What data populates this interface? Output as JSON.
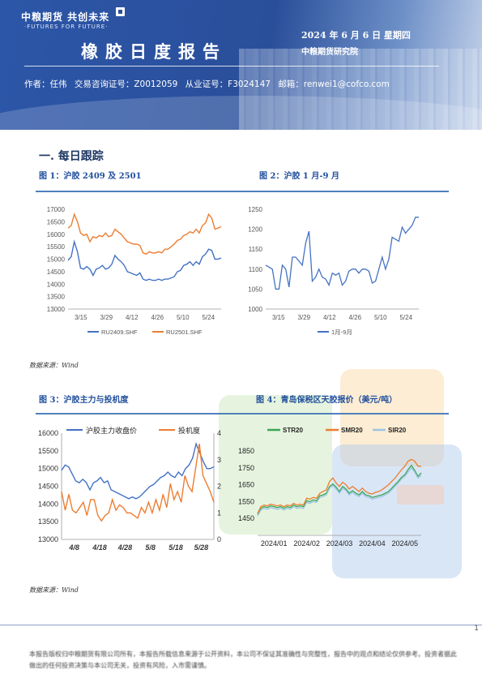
{
  "header": {
    "logo_cn": "中粮期货 共创未来",
    "logo_en": "·FUTURES FOR FUTURE·",
    "title": "橡胶日度报告",
    "date": "2024 年 6 月 6 日 星期四",
    "institute": "中粮期货研究院",
    "author_label": "作者：任伟",
    "license1": "交易咨询证号：Z0012059",
    "license2": "从业证号：F3024147",
    "email": "邮箱：renwei1@cofco.com"
  },
  "section_title": "一. 每日跟踪",
  "figures": {
    "fig1_title": "图 1：沪胶 2409 及 2501",
    "fig2_title": "图 2：沪胶 1 月-9 月",
    "fig3_title": "图 3：沪胶主力与投机度",
    "fig4_title": "图 4：青岛保税区天胶报价（美元/吨）",
    "source_top": "数据来源：Wind",
    "source_bottom": "数据来源：Wind"
  },
  "colors": {
    "blue": "#4472c4",
    "orange": "#ed7d31",
    "green": "#3aa655",
    "lightblue": "#9dc3e6"
  },
  "chart_data": [
    {
      "type": "line",
      "ylim": [
        13000,
        17000
      ],
      "x_ticks": [
        "3/15",
        "3/29",
        "4/12",
        "4/26",
        "5/10",
        "5/24"
      ],
      "series": [
        {
          "name": "RU2409.SHF",
          "values": [
            14950,
            15100,
            15700,
            15300,
            14650,
            14600,
            14700,
            14600,
            14350,
            14600,
            14650,
            14750,
            14600,
            14650,
            14800,
            15150,
            15000,
            14900,
            14750,
            14500,
            14450,
            14400,
            14350,
            14450,
            14200,
            14150,
            14200,
            14150,
            14150,
            14200,
            14150,
            14200,
            14200,
            14250,
            14300,
            14500,
            14550,
            14750,
            14800,
            14900,
            14750,
            14900,
            14800,
            15100,
            15200,
            15400,
            15350,
            15000,
            15000,
            15050
          ]
        },
        {
          "name": "RU2501.SHF",
          "values": [
            16250,
            16350,
            16800,
            16500,
            16050,
            15950,
            16000,
            15700,
            15900,
            15850,
            15950,
            15900,
            16050,
            15900,
            15950,
            16200,
            16100,
            16000,
            15850,
            15700,
            15650,
            15600,
            15600,
            15550,
            15250,
            15200,
            15300,
            15250,
            15250,
            15300,
            15250,
            15400,
            15400,
            15500,
            15600,
            15750,
            15800,
            15950,
            16000,
            16100,
            16050,
            16200,
            16050,
            16350,
            16450,
            16800,
            16650,
            16200,
            16250,
            16300
          ]
        }
      ],
      "yticks": [
        "13000",
        "13500",
        "14000",
        "14500",
        "15000",
        "15500",
        "16000",
        "16500",
        "17000"
      ]
    },
    {
      "type": "line",
      "ylim": [
        1000,
        1250
      ],
      "x_ticks": [
        "3/15",
        "3/29",
        "4/12",
        "4/26",
        "5/10",
        "5/24"
      ],
      "series": [
        {
          "name": "1月-9月",
          "values": [
            1110,
            1105,
            1100,
            1050,
            1050,
            1110,
            1100,
            1055,
            1130,
            1130,
            1120,
            1110,
            1165,
            1195,
            1070,
            1080,
            1100,
            1080,
            1075,
            1060,
            1090,
            1085,
            1090,
            1060,
            1070,
            1095,
            1100,
            1100,
            1090,
            1100,
            1100,
            1095,
            1065,
            1070,
            1100,
            1130,
            1100,
            1125,
            1180,
            1175,
            1170,
            1205,
            1190,
            1200,
            1210,
            1230,
            1230
          ]
        }
      ],
      "yticks": [
        "1000",
        "1050",
        "1100",
        "1150",
        "1200",
        "1250"
      ]
    },
    {
      "type": "line",
      "ylim": [
        13000,
        16000
      ],
      "y2lim": [
        0,
        4
      ],
      "x_ticks": [
        "4/8",
        "4/18",
        "4/28",
        "5/8",
        "5/18",
        "5/28"
      ],
      "series": [
        {
          "name": "沪胶主力收盘价",
          "axis": "left",
          "values": [
            14950,
            15100,
            15050,
            14850,
            14650,
            14600,
            14700,
            14600,
            14400,
            14600,
            14650,
            14750,
            14600,
            14650,
            14400,
            14350,
            14300,
            14250,
            14200,
            14150,
            14200,
            14150,
            14200,
            14300,
            14400,
            14500,
            14550,
            14650,
            14750,
            14800,
            14900,
            14800,
            14750,
            14900,
            14800,
            15000,
            15100,
            15300,
            15700,
            15450,
            15200,
            15000,
            15000,
            15050
          ]
        },
        {
          "name": "投机度",
          "axis": "right",
          "values": [
            1.8,
            1.1,
            1.7,
            1.1,
            1.0,
            1.2,
            1.4,
            0.9,
            1.5,
            1.5,
            0.9,
            0.7,
            0.9,
            1.0,
            1.5,
            1.1,
            1.3,
            1.2,
            1.0,
            1.0,
            0.9,
            0.8,
            1.2,
            1.0,
            1.4,
            1.0,
            1.5,
            1.1,
            1.7,
            1.2,
            2.1,
            1.5,
            1.8,
            1.4,
            2.4,
            2.0,
            1.8,
            2.7,
            3.6,
            2.4,
            2.1,
            1.8,
            1.4
          ]
        }
      ],
      "yticks": [
        "13000",
        "13500",
        "14000",
        "14500",
        "15000",
        "15500",
        "16000"
      ],
      "y2ticks": [
        "0",
        "1",
        "2",
        "3",
        "4"
      ]
    },
    {
      "type": "line",
      "ylim": [
        1350,
        1850
      ],
      "x_ticks": [
        "2024/01",
        "2024/02",
        "2024/03",
        "2024/04",
        "2024/05"
      ],
      "series": [
        {
          "name": "STR20",
          "values": [
            1475,
            1510,
            1520,
            1515,
            1525,
            1520,
            1515,
            1520,
            1510,
            1520,
            1515,
            1530,
            1520,
            1525,
            1520,
            1555,
            1550,
            1560,
            1555,
            1585,
            1590,
            1600,
            1640,
            1655,
            1635,
            1610,
            1640,
            1625,
            1600,
            1615,
            1600,
            1590,
            1610,
            1590,
            1585,
            1575,
            1580,
            1585,
            1590,
            1600,
            1610,
            1630,
            1650,
            1670,
            1695,
            1710,
            1740,
            1765,
            1735,
            1700,
            1720
          ]
        },
        {
          "name": "SMR20",
          "values": [
            1480,
            1520,
            1530,
            1525,
            1535,
            1530,
            1525,
            1530,
            1520,
            1530,
            1525,
            1540,
            1530,
            1535,
            1530,
            1570,
            1565,
            1575,
            1570,
            1600,
            1610,
            1620,
            1670,
            1690,
            1660,
            1640,
            1665,
            1650,
            1625,
            1640,
            1625,
            1610,
            1630,
            1610,
            1600,
            1595,
            1605,
            1610,
            1620,
            1635,
            1650,
            1670,
            1690,
            1715,
            1740,
            1760,
            1790,
            1800,
            1790,
            1760,
            1760
          ]
        },
        {
          "name": "SIR20",
          "values": [
            1465,
            1500,
            1510,
            1505,
            1515,
            1510,
            1505,
            1510,
            1500,
            1510,
            1505,
            1520,
            1510,
            1515,
            1510,
            1545,
            1540,
            1550,
            1545,
            1575,
            1580,
            1590,
            1630,
            1645,
            1625,
            1600,
            1630,
            1615,
            1590,
            1605,
            1590,
            1580,
            1600,
            1580,
            1575,
            1565,
            1570,
            1575,
            1580,
            1590,
            1600,
            1620,
            1640,
            1660,
            1685,
            1700,
            1725,
            1750,
            1725,
            1690,
            1705
          ]
        }
      ],
      "yticks": [
        "1450",
        "1550",
        "1650",
        "1750",
        "1850"
      ]
    }
  ],
  "footer": {
    "page_number": "1",
    "disclaimer": "本报告版权归中粮期货有限公司所有，本报告所载信息来源于公开资料，本公司不保证其准确性与完整性，报告中的观点和结论仅供参考。投资者据此做出的任何投资决策与本公司无关，投资有风险，入市需谨慎。"
  }
}
